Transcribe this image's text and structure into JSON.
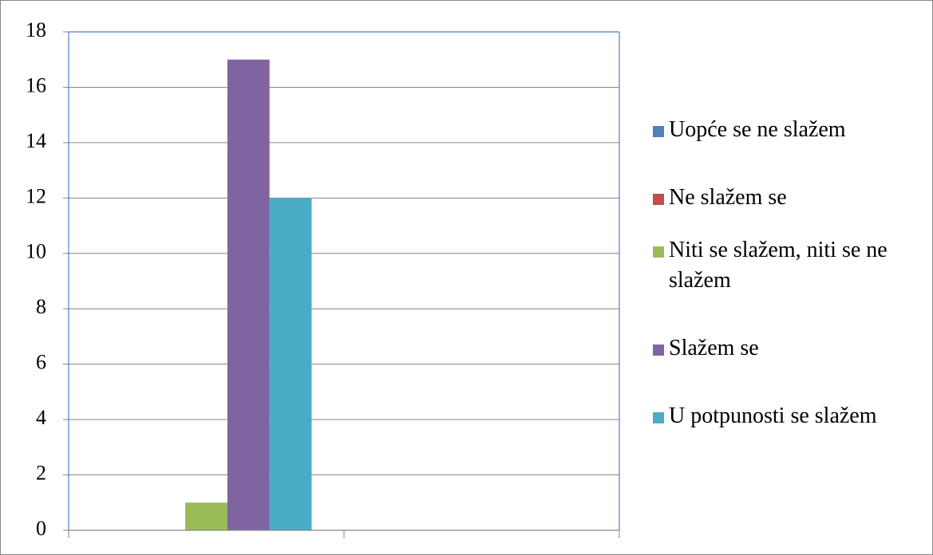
{
  "chart_data": {
    "type": "bar",
    "categories": [
      null,
      null
    ],
    "series": [
      {
        "name": "Uopće se ne slažem",
        "color": "#4f81bd",
        "values": [
          0,
          null
        ]
      },
      {
        "name": "Ne slažem se",
        "color": "#c0504d",
        "values": [
          0,
          null
        ]
      },
      {
        "name": "Niti se slažem, niti se ne slažem",
        "color": "#9bbb59",
        "values": [
          1,
          null
        ]
      },
      {
        "name": "Slažem se",
        "color": "#8064a2",
        "values": [
          17,
          null
        ]
      },
      {
        "name": "U potpunosti se slažem",
        "color": "#4bacc6",
        "values": [
          12,
          null
        ]
      }
    ],
    "ylim": [
      0,
      18
    ],
    "yticks": [
      0,
      2,
      4,
      6,
      8,
      10,
      12,
      14,
      16,
      18
    ],
    "grid": true,
    "legend": "right"
  }
}
